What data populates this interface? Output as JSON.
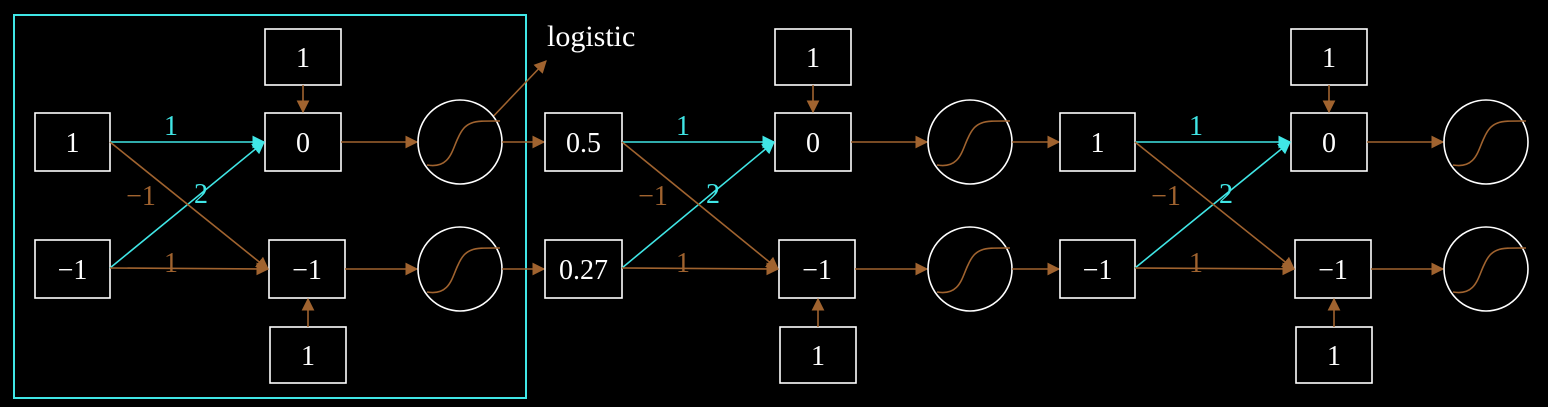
{
  "annotation": "logistic",
  "colors": {
    "background": "#000000",
    "node_border": "#ffffff",
    "positive_weight": "#40e6e6",
    "other_weight": "#a0632f",
    "highlight_frame": "#40e6e6"
  },
  "layers": [
    {
      "inputs": [
        "1",
        "−1"
      ],
      "bias_top": "1",
      "bias_bottom": "1",
      "sums": [
        "0",
        "−1"
      ],
      "weights": {
        "w11": "1",
        "w21": "2",
        "w12": "−1",
        "w22": "1"
      }
    },
    {
      "inputs": [
        "0.5",
        "0.27"
      ],
      "bias_top": "1",
      "bias_bottom": "1",
      "sums": [
        "0",
        "−1"
      ],
      "weights": {
        "w11": "1",
        "w21": "2",
        "w12": "−1",
        "w22": "1"
      }
    },
    {
      "inputs": [
        "1",
        "−1"
      ],
      "bias_top": "1",
      "bias_bottom": "1",
      "sums": [
        "0",
        "−1"
      ],
      "weights": {
        "w11": "1",
        "w21": "2",
        "w12": "−1",
        "w22": "1"
      }
    }
  ]
}
